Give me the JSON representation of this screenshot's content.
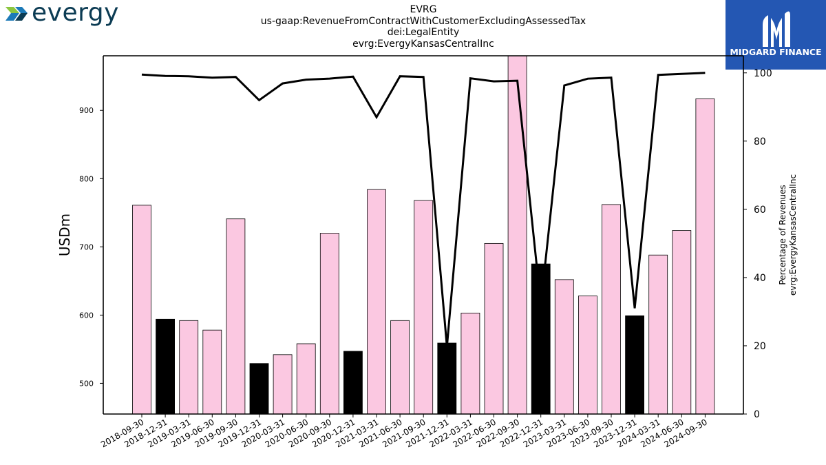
{
  "header": {
    "left_logo_text": "evergy",
    "right_logo_text": "MIDGARD FINANCE",
    "title_lines": [
      "EVRG",
      "us-gaap:RevenueFromContractWithCustomerExcludingAssessedTax",
      "dei:LegalEntity",
      "evrg:EvergyKansasCentralInc"
    ]
  },
  "chart_data": {
    "type": "bar",
    "categories": [
      "2018-09-30",
      "2018-12-31",
      "2019-03-31",
      "2019-06-30",
      "2019-09-30",
      "2019-12-31",
      "2020-03-31",
      "2020-06-30",
      "2020-09-30",
      "2020-12-31",
      "2021-03-31",
      "2021-06-30",
      "2021-09-30",
      "2021-12-31",
      "2022-03-31",
      "2022-06-30",
      "2022-09-30",
      "2022-12-31",
      "2023-03-31",
      "2023-06-30",
      "2023-09-30",
      "2023-12-31",
      "2024-03-31",
      "2024-06-30",
      "2024-09-30"
    ],
    "values": [
      761,
      594,
      592,
      578,
      741,
      529,
      542,
      558,
      720,
      547,
      784,
      592,
      768,
      559,
      603,
      705,
      1000,
      675,
      652,
      628,
      762,
      599,
      688,
      724,
      917
    ],
    "bar_colors": [
      "#fbc8e1",
      "#000000",
      "#fbc8e1",
      "#fbc8e1",
      "#fbc8e1",
      "#000000",
      "#fbc8e1",
      "#fbc8e1",
      "#fbc8e1",
      "#000000",
      "#fbc8e1",
      "#fbc8e1",
      "#fbc8e1",
      "#000000",
      "#fbc8e1",
      "#fbc8e1",
      "#fbc8e1",
      "#000000",
      "#fbc8e1",
      "#fbc8e1",
      "#fbc8e1",
      "#000000",
      "#fbc8e1",
      "#fbc8e1",
      "#fbc8e1"
    ],
    "ylabel": "USDm",
    "ylim": [
      455,
      980
    ],
    "yticks": [
      500,
      600,
      700,
      800,
      900
    ],
    "line_series": {
      "values": [
        99.5,
        99.1,
        99.0,
        98.6,
        98.8,
        92.0,
        96.9,
        98.0,
        98.3,
        98.9,
        87.0,
        99.0,
        98.8,
        19.8,
        98.4,
        97.5,
        97.7,
        32.0,
        96.3,
        98.3,
        98.6,
        31.0,
        99.4,
        99.7,
        100.0
      ]
    },
    "y2label_lines": [
      "Percentage of Revenues",
      "evrg:EvergyKansasCentralInc"
    ],
    "y2lim": [
      0,
      105
    ],
    "y2ticks": [
      0,
      20,
      40,
      60,
      80,
      100
    ],
    "grid": false
  }
}
